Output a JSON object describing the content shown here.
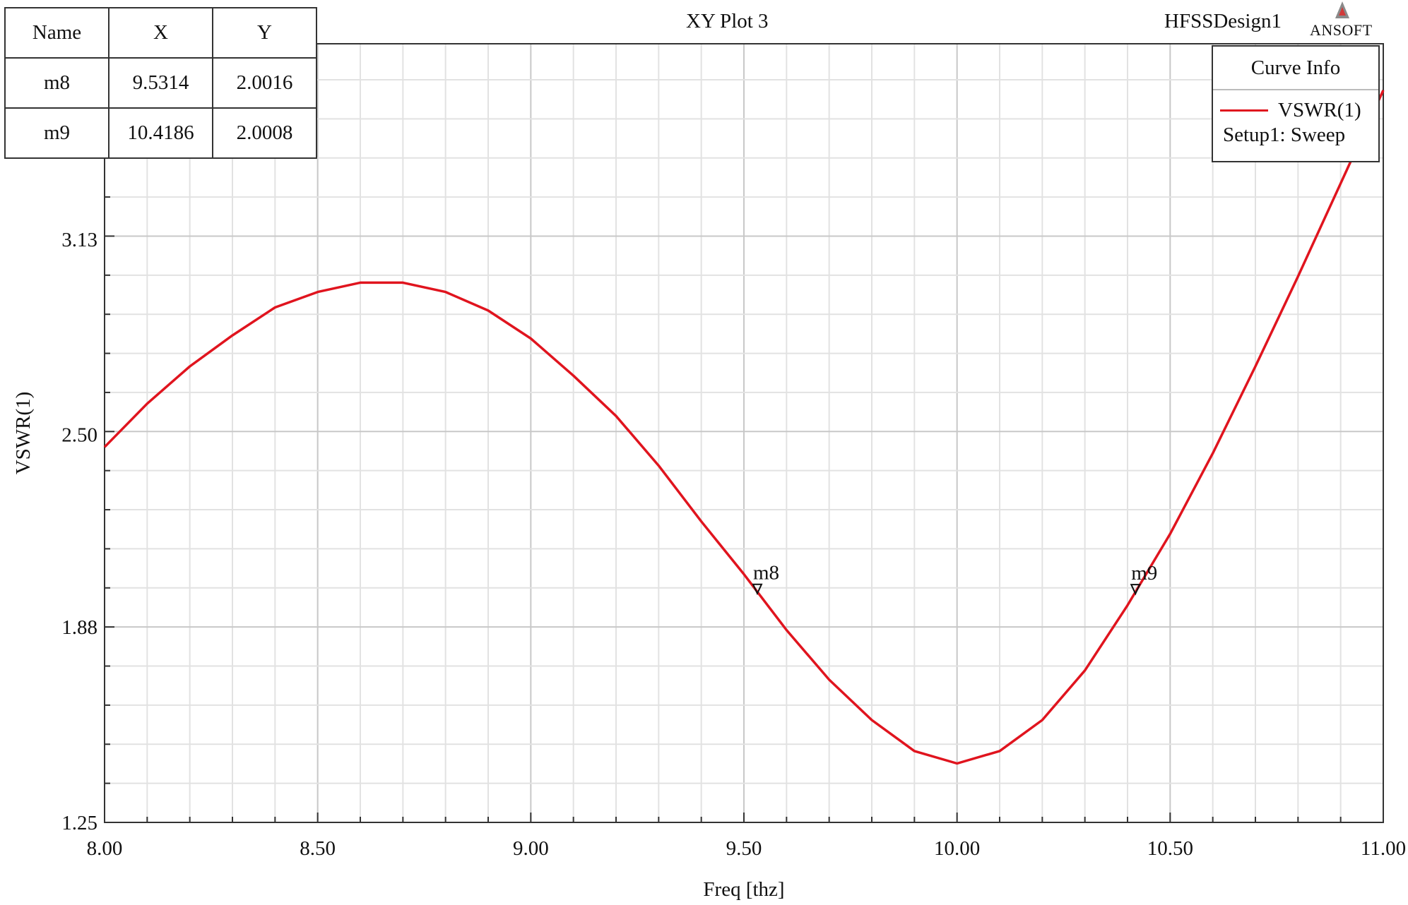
{
  "header": {
    "plot_title": "XY Plot 3",
    "design_name": "HFSSDesign1",
    "logo_text": "ANSOFT",
    "logo_icon": "ansoft-logo-icon"
  },
  "marker_table": {
    "headers": [
      "Name",
      "X",
      "Y"
    ],
    "rows": [
      [
        "m8",
        "9.5314",
        "2.0016"
      ],
      [
        "m9",
        "10.4186",
        "2.0008"
      ]
    ]
  },
  "legend": {
    "title": "Curve Info",
    "series_label": "VSWR(1)",
    "series_sub": "Setup1: Sweep"
  },
  "chart_data": {
    "type": "line",
    "title": "XY Plot 3",
    "xlabel": "Freq [thz]",
    "ylabel": "VSWR(1)",
    "xlim": [
      8.0,
      11.0
    ],
    "ylim": [
      1.25,
      3.76
    ],
    "xticks": [
      8.0,
      8.5,
      9.0,
      9.5,
      10.0,
      10.5,
      11.0
    ],
    "xtick_labels": [
      "8.00",
      "8.50",
      "9.00",
      "9.50",
      "10.00",
      "10.50",
      "11.00"
    ],
    "yticks": [
      1.25,
      1.88,
      2.5,
      3.13
    ],
    "ytick_labels": [
      "1.25",
      "1.88",
      "2.50",
      "3.13"
    ],
    "grid": true,
    "legend_position": "top-right",
    "series": [
      {
        "name": "VSWR(1)",
        "color": "#e0141e",
        "x": [
          8.0,
          8.1,
          8.2,
          8.3,
          8.4,
          8.5,
          8.6,
          8.7,
          8.8,
          8.9,
          9.0,
          9.1,
          9.2,
          9.3,
          9.4,
          9.5,
          9.6,
          9.7,
          9.8,
          9.9,
          10.0,
          10.1,
          10.2,
          10.3,
          10.4,
          10.5,
          10.6,
          10.7,
          10.8,
          10.9,
          11.0
        ],
        "y": [
          2.46,
          2.6,
          2.72,
          2.82,
          2.91,
          2.96,
          2.99,
          2.99,
          2.96,
          2.9,
          2.81,
          2.69,
          2.56,
          2.4,
          2.22,
          2.05,
          1.87,
          1.71,
          1.58,
          1.48,
          1.44,
          1.48,
          1.58,
          1.74,
          1.95,
          2.18,
          2.44,
          2.72,
          3.01,
          3.31,
          3.61
        ]
      }
    ],
    "markers": [
      {
        "name": "m8",
        "x": 9.5314,
        "y": 2.0016
      },
      {
        "name": "m9",
        "x": 10.4186,
        "y": 2.0008
      }
    ]
  }
}
